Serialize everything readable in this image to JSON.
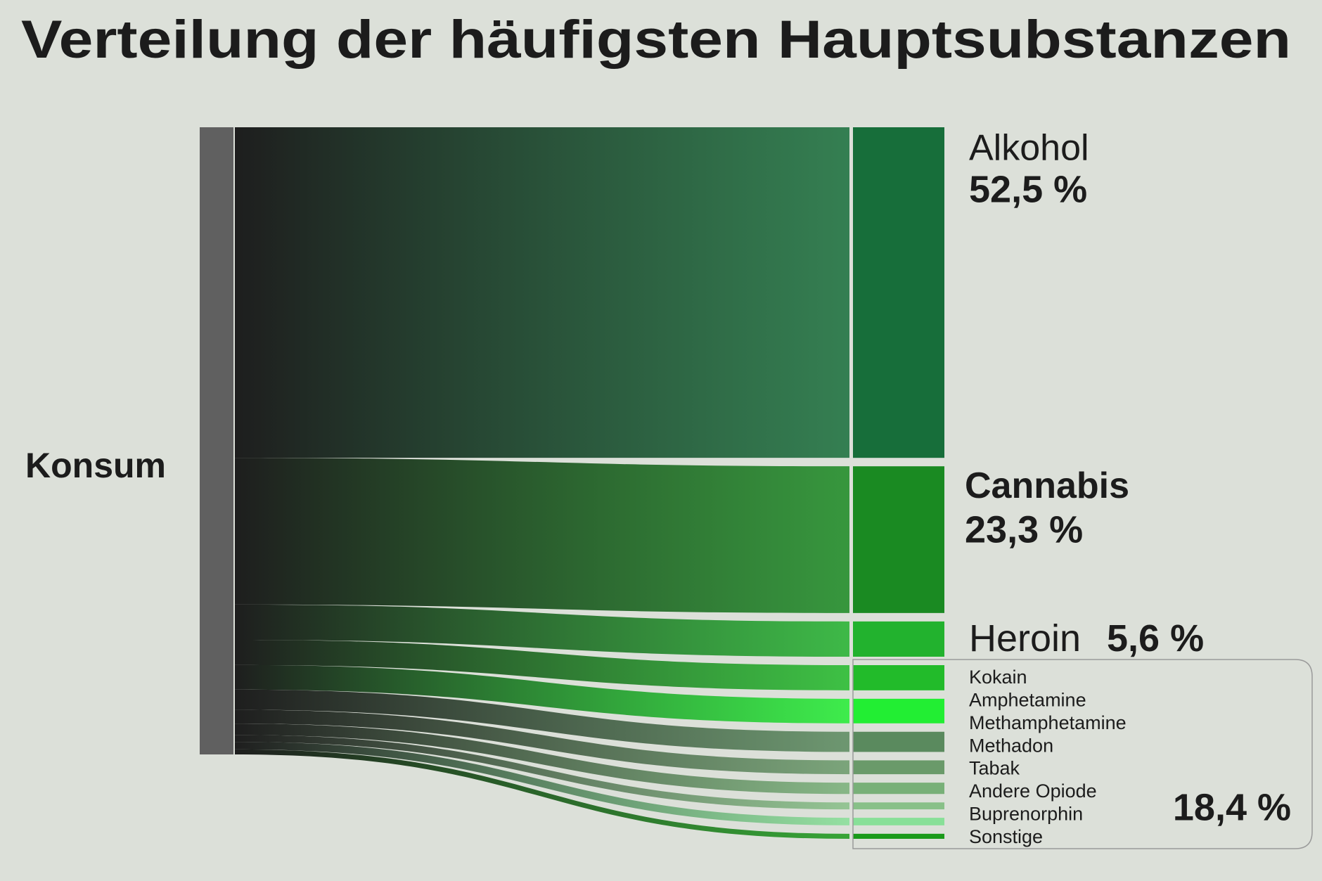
{
  "chart_data": {
    "type": "sankey",
    "title": "Verteilung der häufigsten Hauptsubstanzen",
    "source": "Konsum",
    "targets": [
      {
        "name": "Alkohol",
        "value": 52.5,
        "value_label": "52,5 %",
        "color": "#176e3a"
      },
      {
        "name": "Cannabis",
        "value": 23.3,
        "value_label": "23,3 %",
        "color": "#1a8a22"
      },
      {
        "name": "Heroin",
        "value": 5.6,
        "value_label": "5,6 %",
        "color": "#22b22e"
      }
    ],
    "group": {
      "value": 18.4,
      "value_label": "18,4 %",
      "targets": [
        {
          "name": "Kokain",
          "value": 4.0,
          "color": "#22bb2a"
        },
        {
          "name": "Amphetamine",
          "value": 3.9,
          "color": "#22ee33"
        },
        {
          "name": "Methamphetamine",
          "value": 3.2,
          "color": "#5a8a5e"
        },
        {
          "name": "Methadon",
          "value": 2.2,
          "color": "#6a9a6a"
        },
        {
          "name": "Tabak",
          "value": 1.8,
          "color": "#78b078"
        },
        {
          "name": "Andere Opiode",
          "value": 1.1,
          "color": "#88c088"
        },
        {
          "name": "Buprenorphin",
          "value": 1.2,
          "color": "#88e098"
        },
        {
          "name": "Sonstige",
          "value": 0.8,
          "color": "#1a9a1a"
        }
      ]
    }
  }
}
